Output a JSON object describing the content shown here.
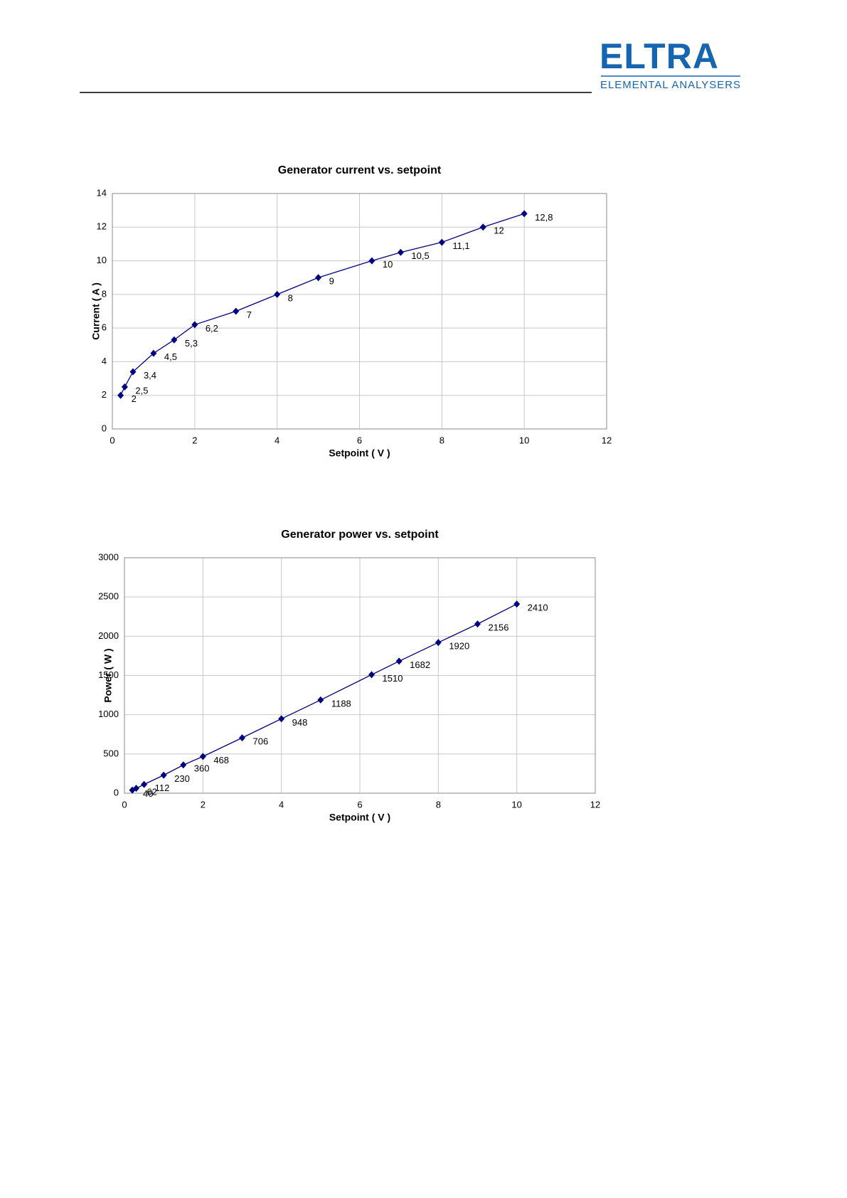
{
  "header": {
    "logo": "ELTRA",
    "tagline": "ELEMENTAL ANALYSERS"
  },
  "chart_data": [
    {
      "type": "line",
      "title": "Generator current vs. setpoint",
      "xlabel": "Setpoint ( V )",
      "ylabel": "Current ( A )",
      "x": [
        0.2,
        0.3,
        0.5,
        1,
        1.5,
        2,
        3,
        4,
        5,
        6.3,
        7,
        8,
        9,
        10
      ],
      "values": [
        2,
        2.5,
        3.4,
        4.5,
        5.3,
        6.2,
        7,
        8,
        9,
        10,
        10.5,
        11.1,
        12,
        12.8
      ],
      "value_labels": [
        "2",
        "2,5",
        "3,4",
        "4,5",
        "5,3",
        "6,2",
        "7",
        "8",
        "9",
        "10",
        "10,5",
        "11,1",
        "12",
        "12,8"
      ],
      "color": "#000080",
      "xlim": [
        0,
        12
      ],
      "xticks": [
        0,
        2,
        4,
        6,
        8,
        10,
        12
      ],
      "ylim": [
        0,
        14
      ],
      "yticks": [
        0,
        2,
        4,
        6,
        8,
        10,
        12,
        14
      ],
      "grid": true
    },
    {
      "type": "line",
      "title": "Generator power vs. setpoint",
      "xlabel": "Setpoint ( V )",
      "ylabel": "Power ( W )",
      "x": [
        0.2,
        0.3,
        0.5,
        1,
        1.5,
        2,
        3,
        4,
        5,
        6.3,
        7,
        8,
        9,
        10
      ],
      "values": [
        40,
        62,
        112,
        230,
        360,
        468,
        706,
        948,
        1188,
        1510,
        1682,
        1920,
        2156,
        2410
      ],
      "color": "#000080",
      "xlim": [
        0,
        12
      ],
      "xticks": [
        0,
        2,
        4,
        6,
        8,
        10,
        12
      ],
      "ylim": [
        0,
        3000
      ],
      "yticks": [
        0,
        500,
        1000,
        1500,
        2000,
        2500,
        3000
      ],
      "grid": true
    }
  ]
}
